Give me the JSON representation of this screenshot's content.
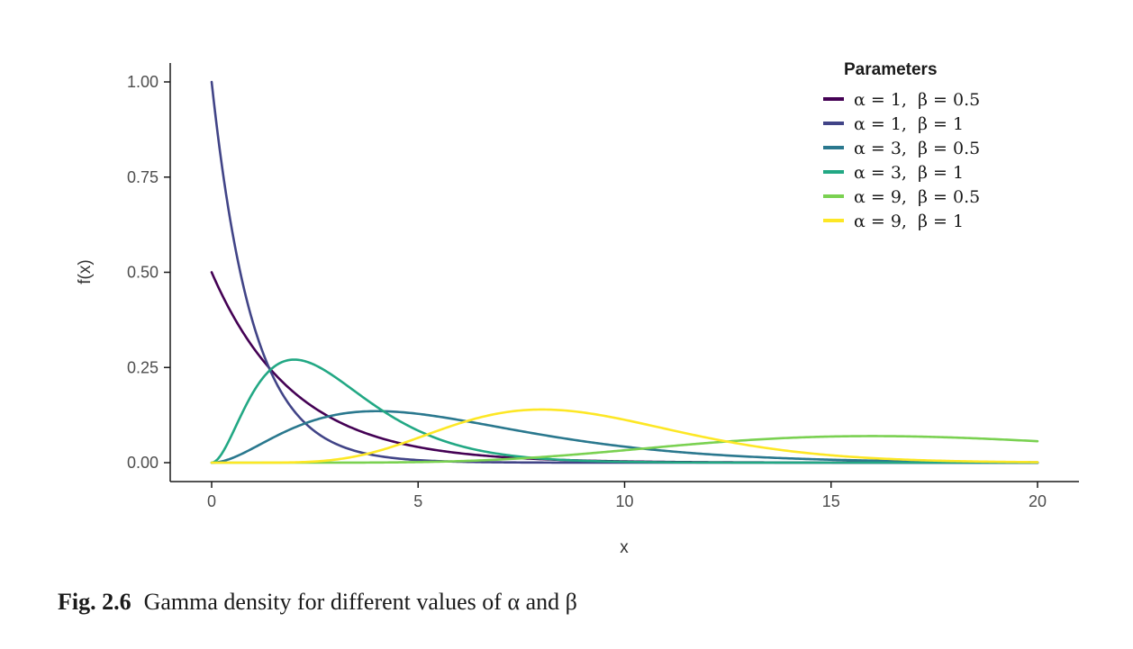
{
  "chart_data": {
    "type": "line",
    "xlabel": "x",
    "ylabel": "f(x)",
    "xlim": [
      0,
      20
    ],
    "ylim": [
      0,
      1
    ],
    "x_ticks": [
      "0",
      "5",
      "10",
      "15",
      "20"
    ],
    "y_ticks": [
      "0.00",
      "0.25",
      "0.50",
      "0.75",
      "1.00"
    ],
    "legend_title": "Parameters",
    "legend_position": "top-right",
    "grid": false,
    "series": [
      {
        "name": "α = 1,  β = 0.5",
        "alpha": 1,
        "beta": 0.5,
        "color": "#440154",
        "x": [
          0,
          1,
          2,
          3,
          4,
          6,
          8,
          10,
          15,
          20
        ],
        "y": [
          0.5,
          0.303,
          0.184,
          0.112,
          0.068,
          0.025,
          0.009,
          0.003,
          0.0003,
          2e-05
        ]
      },
      {
        "name": "α = 1,  β = 1",
        "alpha": 1,
        "beta": 1,
        "color": "#414487",
        "x": [
          0,
          1,
          2,
          3,
          4,
          6,
          8,
          10,
          15,
          20
        ],
        "y": [
          1.0,
          0.368,
          0.135,
          0.05,
          0.018,
          0.002,
          0.0003,
          5e-05,
          0,
          0
        ]
      },
      {
        "name": "α = 3,  β = 0.5",
        "alpha": 3,
        "beta": 0.5,
        "color": "#2a788e",
        "x": [
          0,
          1,
          2,
          3,
          4,
          6,
          8,
          10,
          15,
          20
        ],
        "y": [
          0,
          0.038,
          0.092,
          0.126,
          0.135,
          0.112,
          0.073,
          0.042,
          0.008,
          0.001
        ]
      },
      {
        "name": "α = 3,  β = 1",
        "alpha": 3,
        "beta": 1,
        "color": "#22a884",
        "x": [
          0,
          1,
          2,
          3,
          4,
          6,
          8,
          10,
          15,
          20
        ],
        "y": [
          0,
          0.184,
          0.271,
          0.224,
          0.147,
          0.045,
          0.011,
          0.002,
          0,
          0
        ]
      },
      {
        "name": "α = 9,  β = 0.5",
        "alpha": 9,
        "beta": 0.5,
        "color": "#7ad151",
        "x": [
          0,
          2,
          4,
          6,
          8,
          10,
          12,
          14,
          16,
          18,
          20
        ],
        "y": [
          0,
          1e-05,
          0.0004,
          0.003,
          0.011,
          0.025,
          0.043,
          0.06,
          0.07,
          0.071,
          0.065
        ]
      },
      {
        "name": "α = 9,  β = 1",
        "alpha": 9,
        "beta": 1,
        "color": "#fde725",
        "x": [
          0,
          2,
          4,
          6,
          8,
          10,
          12,
          14,
          16,
          18,
          20
        ],
        "y": [
          0,
          0.0009,
          0.03,
          0.103,
          0.14,
          0.113,
          0.066,
          0.031,
          0.012,
          0.004,
          0.001
        ]
      }
    ]
  },
  "caption": {
    "label": "Fig. 2.6",
    "text": "Gamma density for different values of α and β"
  }
}
